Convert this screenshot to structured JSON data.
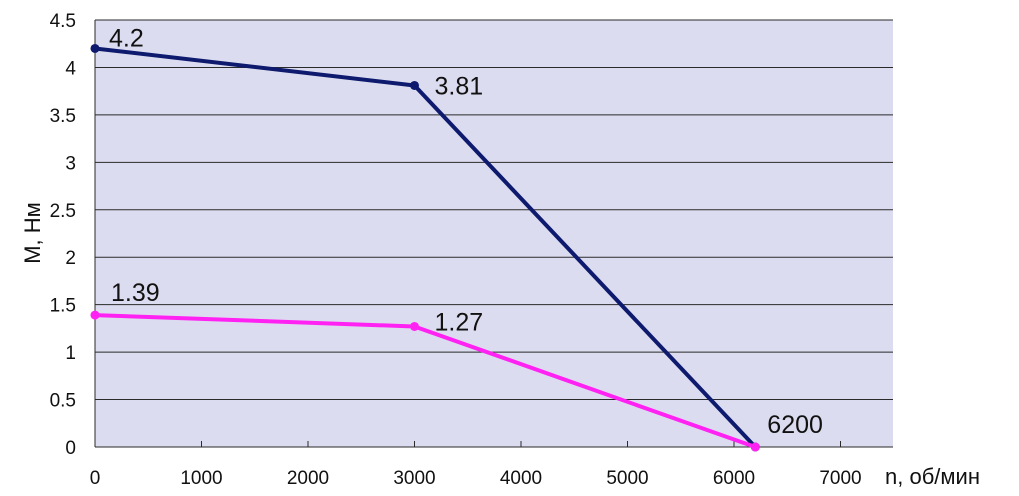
{
  "chart_data": {
    "type": "line",
    "title": "",
    "xlabel": "n, об/мин",
    "ylabel": "М, Нм",
    "xlim": [
      0,
      7500
    ],
    "ylim": [
      0,
      4.5
    ],
    "x_ticks": [
      0,
      1000,
      2000,
      3000,
      4000,
      5000,
      6000,
      7000
    ],
    "y_ticks": [
      0,
      0.5,
      1,
      1.5,
      2,
      2.5,
      3,
      3.5,
      4,
      4.5
    ],
    "x_tick_labels": [
      "0",
      "1000",
      "2000",
      "3000",
      "4000",
      "5000",
      "6000",
      "7000"
    ],
    "y_tick_labels": [
      "0",
      "0.5",
      "1",
      "1.5",
      "2",
      "2.5",
      "3",
      "3.5",
      "4",
      "4.5"
    ],
    "grid": "horizontal",
    "legend": "none",
    "series": [
      {
        "color": "#0d1a6e",
        "x": [
          0,
          3000,
          6200
        ],
        "y": [
          4.2,
          3.81,
          0
        ]
      },
      {
        "color": "#ff22f2",
        "x": [
          0,
          3000,
          6200
        ],
        "y": [
          1.39,
          1.27,
          0
        ]
      }
    ],
    "annotations": [
      {
        "text": "4.2",
        "x": 0,
        "y": 4.2
      },
      {
        "text": "3.81",
        "x": 3000,
        "y": 3.81
      },
      {
        "text": "1.39",
        "x": 0,
        "y": 1.39
      },
      {
        "text": "1.27",
        "x": 3000,
        "y": 1.27
      },
      {
        "text": "6200",
        "x": 6200,
        "y": 0
      }
    ],
    "plot_background": "#dcdcf0"
  }
}
